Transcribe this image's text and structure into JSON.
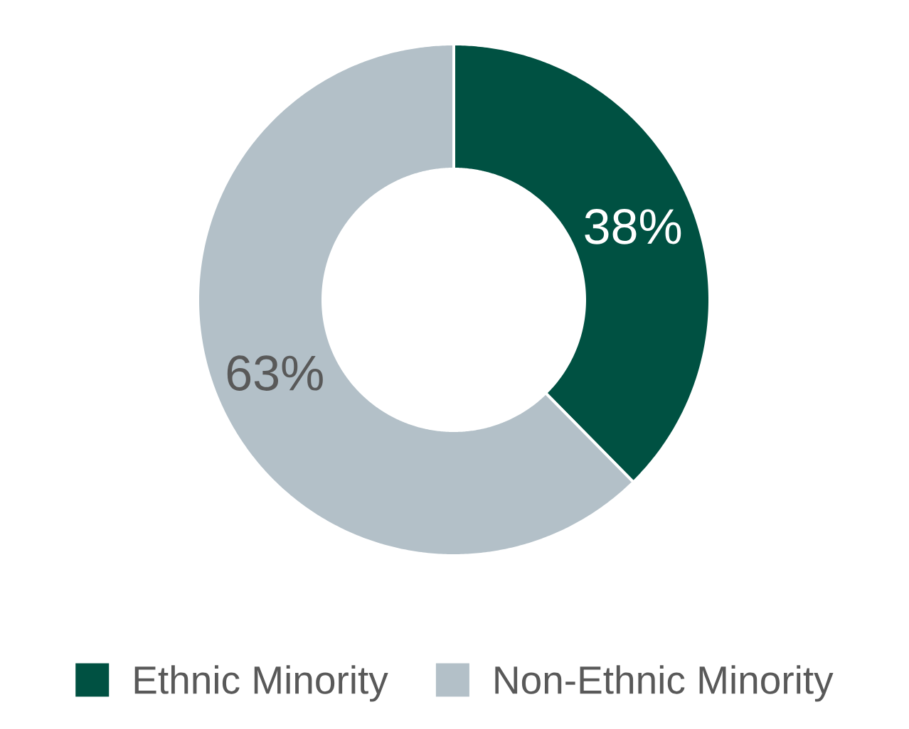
{
  "chart_data": {
    "type": "donut",
    "categories": [
      "Ethnic Minority",
      "Non-Ethnic Minority"
    ],
    "values": [
      38,
      63
    ],
    "colors": [
      "#005142",
      "#b3c0c8"
    ],
    "value_labels": [
      "38%",
      "63%"
    ],
    "legend": "bottom"
  }
}
